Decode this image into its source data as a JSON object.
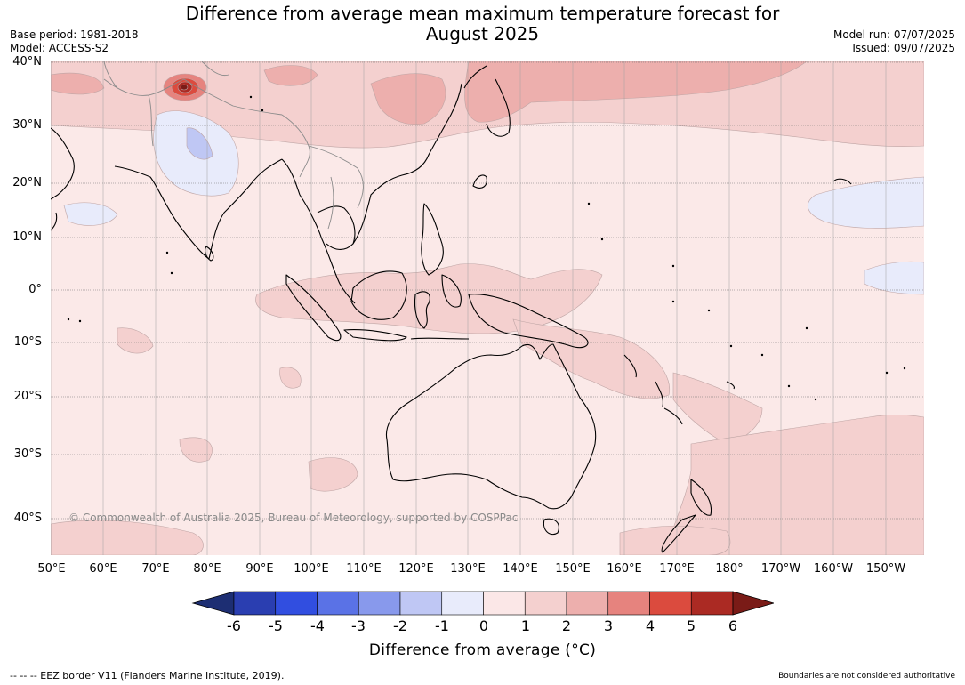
{
  "title_line1": "Difference from average mean maximum temperature forecast for",
  "title_line2": "August 2025",
  "base_period": "Base period: 1981-2018",
  "model": "Model: ACCESS-S2",
  "model_run": "Model run: 07/07/2025",
  "issued": "Issued: 09/07/2025",
  "copyright": "© Commonwealth of Australia 2025, Bureau of Meteorology, supported by COSPPac",
  "lat_labels": [
    "40°N",
    "30°N",
    "20°N",
    "10°N",
    "0°",
    "10°S",
    "20°S",
    "30°S",
    "40°S"
  ],
  "lon_labels": [
    "50°E",
    "60°E",
    "70°E",
    "80°E",
    "90°E",
    "100°E",
    "110°E",
    "120°E",
    "130°E",
    "140°E",
    "150°E",
    "160°E",
    "170°E",
    "180°",
    "170°W",
    "160°W",
    "150°W"
  ],
  "colorbar": {
    "ticks": [
      "-6",
      "-5",
      "-4",
      "-3",
      "-2",
      "-1",
      "0",
      "1",
      "2",
      "3",
      "4",
      "5",
      "6"
    ],
    "label": "Difference from average (°C)",
    "colors": [
      "#1d2e73",
      "#2a3eb1",
      "#314ee0",
      "#5a72e6",
      "#8899ec",
      "#bfc7f4",
      "#e8ebfb",
      "#fbe7e7",
      "#f4d0cf",
      "#edafad",
      "#e6837e",
      "#db4b3e",
      "#ab2a23",
      "#7a1b17"
    ]
  },
  "legend_fill": "#fbe9e8",
  "footer_left": "--  --  -- EEZ border V11 (Flanders Marine Institute, 2019).",
  "footer_right": "Boundaries are not considered authoritative"
}
